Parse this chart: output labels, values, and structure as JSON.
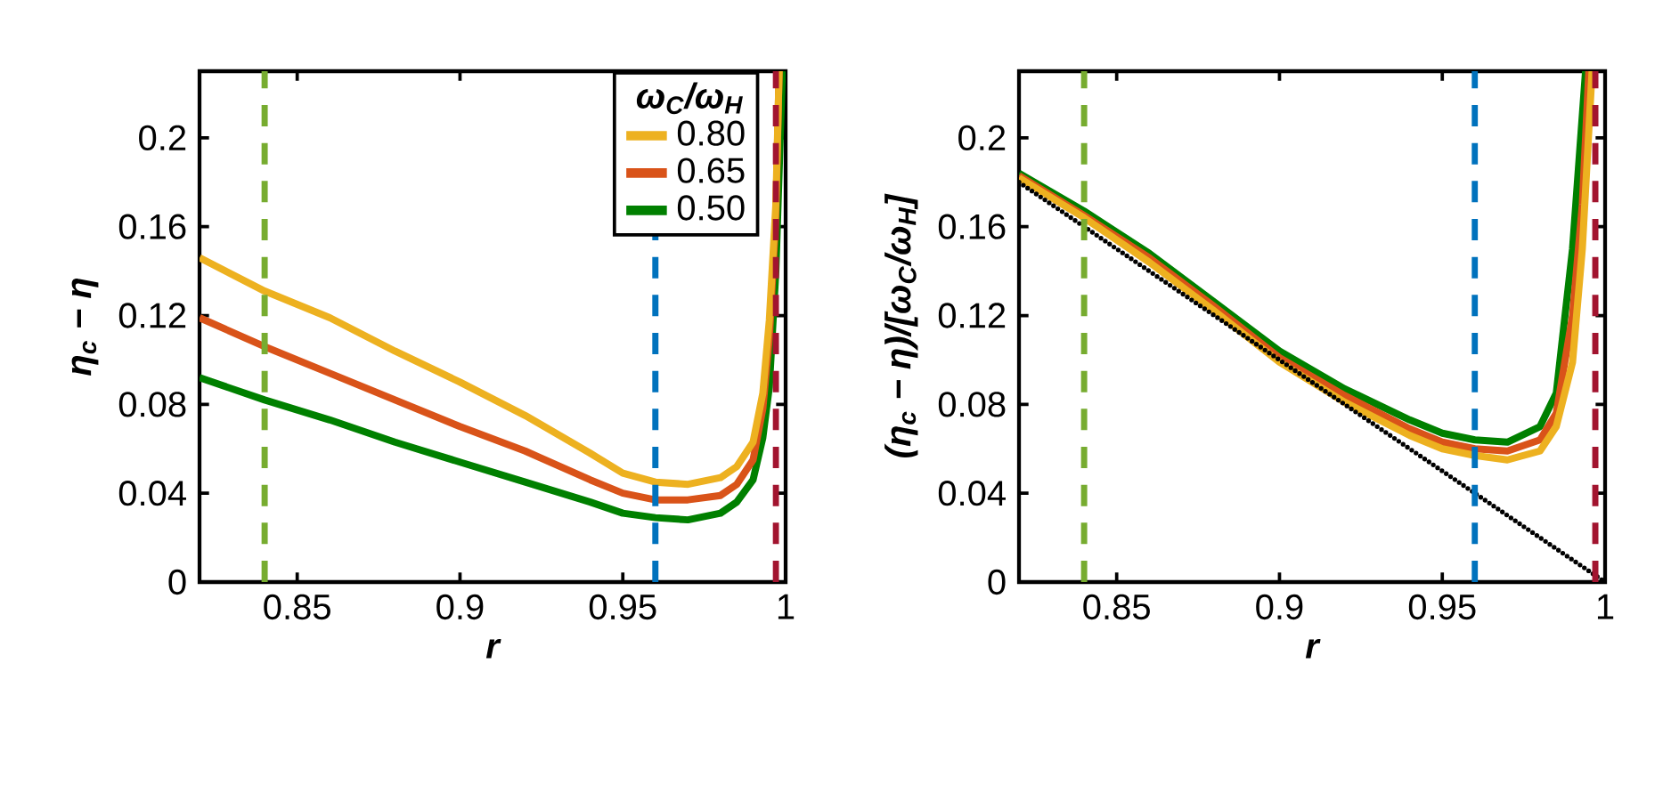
{
  "chart_data": [
    {
      "type": "line",
      "xlabel": "r",
      "ylabel": "η$_{c}$ − η",
      "legend_title": "ω$_{C}$/ω$_{H}$",
      "legend": "top right",
      "marker": "none",
      "line_style": "solid",
      "xlim": [
        0.82,
        1.0
      ],
      "ylim": [
        0,
        0.23
      ],
      "xticks": [
        0.85,
        0.9,
        0.95,
        1
      ],
      "yticks": [
        0,
        0.04,
        0.08,
        0.12,
        0.16,
        0.2
      ],
      "series": [
        {
          "name": "0.80",
          "color": "#edb120",
          "x": [
            0.82,
            0.84,
            0.86,
            0.88,
            0.9,
            0.92,
            0.94,
            0.95,
            0.96,
            0.97,
            0.98,
            0.985,
            0.99,
            0.993,
            0.995,
            0.997,
            0.998
          ],
          "values": [
            0.146,
            0.131,
            0.119,
            0.104,
            0.09,
            0.075,
            0.058,
            0.049,
            0.045,
            0.044,
            0.047,
            0.052,
            0.063,
            0.085,
            0.118,
            0.17,
            0.23
          ]
        },
        {
          "name": "0.65",
          "color": "#d95319",
          "x": [
            0.82,
            0.84,
            0.86,
            0.88,
            0.9,
            0.92,
            0.94,
            0.95,
            0.96,
            0.97,
            0.98,
            0.985,
            0.99,
            0.993,
            0.995,
            0.997,
            0.998
          ],
          "values": [
            0.119,
            0.106,
            0.094,
            0.082,
            0.07,
            0.059,
            0.046,
            0.04,
            0.037,
            0.037,
            0.039,
            0.044,
            0.055,
            0.078,
            0.11,
            0.165,
            0.23
          ]
        },
        {
          "name": "0.50",
          "color": "#008000",
          "x": [
            0.82,
            0.84,
            0.86,
            0.88,
            0.9,
            0.92,
            0.94,
            0.95,
            0.96,
            0.97,
            0.98,
            0.985,
            0.99,
            0.993,
            0.995,
            0.997,
            0.998,
            0.999
          ],
          "values": [
            0.092,
            0.082,
            0.073,
            0.063,
            0.054,
            0.045,
            0.036,
            0.031,
            0.029,
            0.028,
            0.031,
            0.036,
            0.046,
            0.065,
            0.088,
            0.14,
            0.185,
            0.23
          ]
        }
      ],
      "ref_lines": [
        {
          "axis": "x",
          "value": 0.84,
          "color": "#77ac30",
          "line_style": "dashed"
        },
        {
          "axis": "x",
          "value": 0.96,
          "color": "#0072bd",
          "line_style": "dashed"
        },
        {
          "axis": "x",
          "value": 0.997,
          "color": "#a2142f",
          "line_style": "dashed"
        }
      ]
    },
    {
      "type": "line",
      "xlabel": "r",
      "ylabel": "(η$_{c}$ − η)/[ω$_{C}$/ω$_{H}$]",
      "marker": "none",
      "line_style": "solid",
      "xlim": [
        0.82,
        1.0
      ],
      "ylim": [
        0,
        0.23
      ],
      "xticks": [
        0.85,
        0.9,
        0.95,
        1
      ],
      "yticks": [
        0,
        0.04,
        0.08,
        0.12,
        0.16,
        0.2
      ],
      "series": [
        {
          "color": "#008000",
          "x": [
            0.82,
            0.84,
            0.86,
            0.88,
            0.9,
            0.92,
            0.94,
            0.95,
            0.96,
            0.97,
            0.98,
            0.985,
            0.99,
            0.992,
            0.994
          ],
          "values": [
            0.184,
            0.167,
            0.148,
            0.126,
            0.104,
            0.087,
            0.073,
            0.067,
            0.064,
            0.063,
            0.07,
            0.085,
            0.15,
            0.19,
            0.23
          ]
        },
        {
          "color": "#d95319",
          "x": [
            0.82,
            0.84,
            0.86,
            0.88,
            0.9,
            0.92,
            0.94,
            0.95,
            0.96,
            0.97,
            0.98,
            0.985,
            0.99,
            0.993,
            0.995
          ],
          "values": [
            0.183,
            0.165,
            0.146,
            0.124,
            0.101,
            0.084,
            0.069,
            0.063,
            0.06,
            0.059,
            0.064,
            0.076,
            0.12,
            0.17,
            0.23
          ]
        },
        {
          "color": "#edb120",
          "x": [
            0.82,
            0.84,
            0.86,
            0.88,
            0.9,
            0.92,
            0.94,
            0.95,
            0.96,
            0.97,
            0.98,
            0.985,
            0.99,
            0.993,
            0.996
          ],
          "values": [
            0.182,
            0.164,
            0.144,
            0.122,
            0.099,
            0.081,
            0.066,
            0.06,
            0.057,
            0.055,
            0.059,
            0.07,
            0.099,
            0.15,
            0.23
          ]
        },
        {
          "color": "#000000",
          "line_style": "dotted",
          "x": [
            0.82,
            1.0
          ],
          "values": [
            0.18,
            0.0
          ]
        }
      ],
      "ref_lines": [
        {
          "axis": "x",
          "value": 0.84,
          "color": "#77ac30",
          "line_style": "dashed"
        },
        {
          "axis": "x",
          "value": 0.96,
          "color": "#0072bd",
          "line_style": "dashed"
        },
        {
          "axis": "x",
          "value": 0.997,
          "color": "#a2142f",
          "line_style": "dashed"
        }
      ]
    }
  ]
}
